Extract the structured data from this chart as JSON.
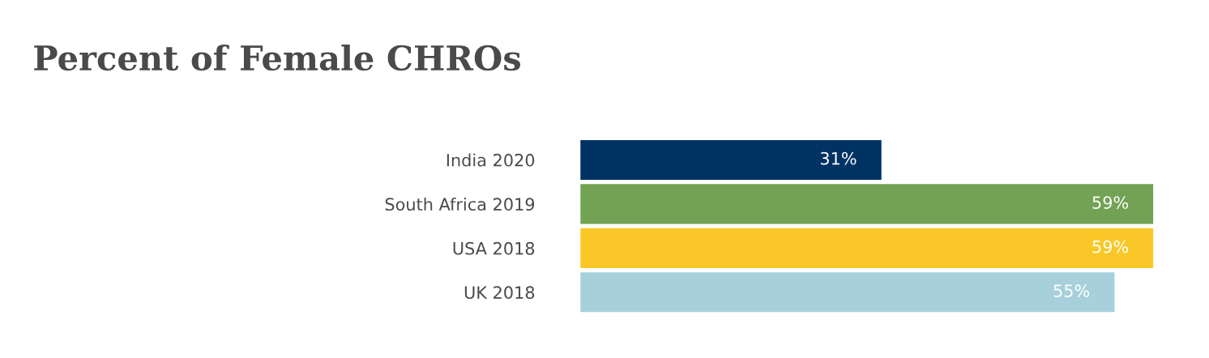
{
  "chart_data": {
    "type": "bar",
    "orientation": "horizontal",
    "title": "Percent of Female CHROs",
    "categories": [
      "India 2020",
      "South Africa 2019",
      "USA 2018",
      "UK 2018"
    ],
    "values": [
      31,
      59,
      59,
      55
    ],
    "colors": [
      "#003263",
      "#72a254",
      "#f9c828",
      "#a7d0dc"
    ],
    "value_labels": [
      "31%",
      "59%",
      "59%",
      "55%"
    ],
    "grid": false,
    "legend": false,
    "tick_labels": "y"
  }
}
